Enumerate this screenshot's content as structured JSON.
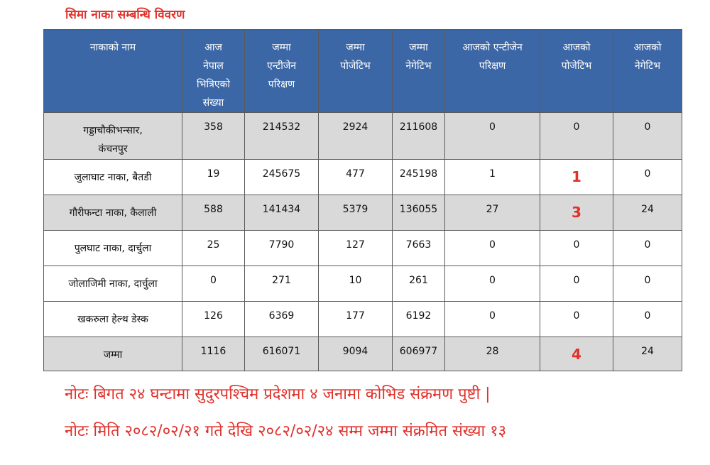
{
  "title": "सिमा नाका सम्बन्धि विवरण",
  "headers": [
    [
      "नाकाको नाम"
    ],
    [
      "आज",
      "नेपाल",
      "भित्रिएको",
      "संख्या"
    ],
    [
      "जम्मा",
      "एन्टीजेन",
      "परिक्षण"
    ],
    [
      "जम्मा",
      "पोजेटिभ"
    ],
    [
      "जम्मा",
      "नेगेटिभ"
    ],
    [
      "आजको एन्टीजेन",
      "परिक्षण"
    ],
    [
      "आजको",
      "पोजेटिभ"
    ],
    [
      "आजको",
      "नेगेटिभ"
    ]
  ],
  "rows": [
    {
      "name": [
        "गड्डाचौकीभन्सार,",
        "कंचनपुर"
      ],
      "values": [
        "358",
        "214532",
        "2924",
        "211608",
        "0",
        "0",
        "0"
      ],
      "highlight": false
    },
    {
      "name": [
        "जुलाघाट नाका, बैतडी"
      ],
      "values": [
        "19",
        "245675",
        "477",
        "245198",
        "1",
        "1",
        "0"
      ],
      "highlight": true
    },
    {
      "name": [
        "गौरीफन्टा नाका, कैलाली"
      ],
      "values": [
        "588",
        "141434",
        "5379",
        "136055",
        "27",
        "3",
        "24"
      ],
      "highlight": true
    },
    {
      "name": [
        "पुलघाट नाका, दार्चुला"
      ],
      "values": [
        "25",
        "7790",
        "127",
        "7663",
        "0",
        "0",
        "0"
      ],
      "highlight": false
    },
    {
      "name": [
        "जोलाजिमी नाका, दार्चुला"
      ],
      "values": [
        "0",
        "271",
        "10",
        "261",
        "0",
        "0",
        "0"
      ],
      "highlight": false
    },
    {
      "name": [
        "खकरुला हेल्थ डेस्क"
      ],
      "values": [
        "126",
        "6369",
        "177",
        "6192",
        "0",
        "0",
        "0"
      ],
      "highlight": false
    },
    {
      "name": [
        "जम्मा"
      ],
      "values": [
        "1116",
        "616071",
        "9094",
        "606977",
        "28",
        "4",
        "24"
      ],
      "highlight": true
    }
  ],
  "notes": [
    "नोटः बिगत २४ घन्टामा सुदुरपश्चिम प्रदेशमा ४ जनामा कोभिड संक्रमण  पुष्टी |",
    "नोटः मिति २०८२/०२/२१ गते देखि २०८२/०२/२४ सम्म जम्मा संक्रमित संख्या १३"
  ],
  "colors": {
    "header_bg": "#3c67a6",
    "shade_row": "#d9d9d9",
    "accent_red": "#e0312b"
  }
}
